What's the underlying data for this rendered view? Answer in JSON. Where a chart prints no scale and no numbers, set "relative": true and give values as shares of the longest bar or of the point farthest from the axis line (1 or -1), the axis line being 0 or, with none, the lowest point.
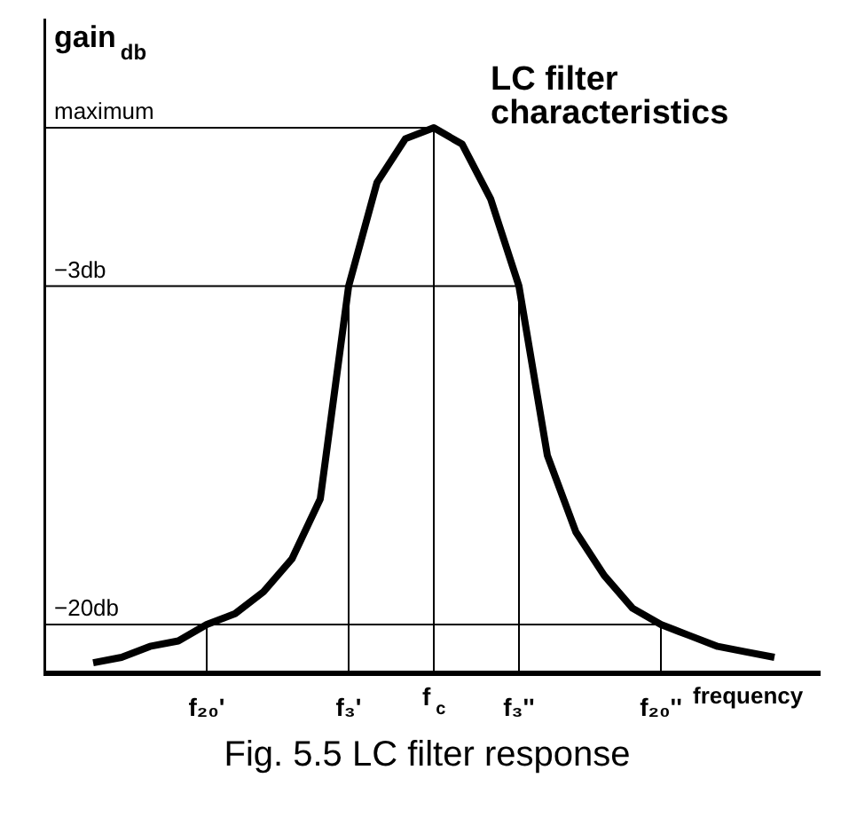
{
  "chart_data": {
    "type": "line",
    "title": "LC filter characteristics",
    "ylabel": "gain$_{db}$",
    "xlabel": "frequency",
    "annotations": [
      "Fig. 5.5  LC filter response"
    ],
    "relative": true,
    "color": "#000000",
    "marker": "none",
    "line_style": "solid",
    "grid": false,
    "categories": [
      null,
      null,
      null,
      null,
      "f₂₀'",
      null,
      null,
      null,
      null,
      "f₃'",
      null,
      null,
      "f$_{c}$",
      null,
      null,
      "f₃''",
      null,
      null,
      null,
      null,
      "f₂₀''",
      null,
      null,
      null,
      null
    ],
    "values": [
      0.02,
      0.03,
      0.05,
      0.06,
      0.09,
      0.11,
      0.15,
      0.21,
      0.32,
      0.71,
      0.9,
      0.98,
      1.0,
      0.97,
      0.87,
      0.71,
      0.4,
      0.26,
      0.18,
      0.12,
      0.09,
      0.07,
      0.05,
      0.04,
      0.03
    ],
    "ref_lines": [
      {
        "axis": "y",
        "value": 1.0,
        "label": "maximum"
      },
      {
        "axis": "y",
        "value": 0.71,
        "label": "−3db"
      },
      {
        "axis": "y",
        "value": 0.09,
        "label": "−20db"
      },
      {
        "axis": "x",
        "value": "f₂₀'"
      },
      {
        "axis": "x",
        "value": "f₃'"
      },
      {
        "axis": "x",
        "value": "f$_{c}$"
      },
      {
        "axis": "x",
        "value": "f₃''"
      },
      {
        "axis": "x",
        "value": "f₂₀''"
      }
    ]
  }
}
